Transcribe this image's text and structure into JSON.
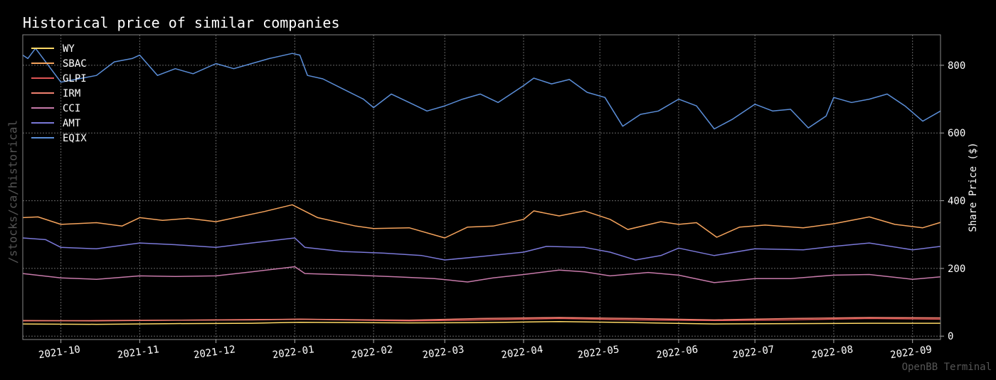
{
  "title": "Historical price of similar companies",
  "watermark_side": "/stocks/ca/historical",
  "watermark_brand": "OpenBB Terminal",
  "chart_data": {
    "type": "line",
    "title": "Historical price of similar companies",
    "xlabel": "",
    "ylabel": "Share Price ($)",
    "xlim": [
      "2021-09-16",
      "2022-09-12"
    ],
    "ylim": [
      -10,
      890
    ],
    "y_ticks": [
      0,
      200,
      400,
      600,
      800
    ],
    "x_ticks": [
      "2021-10",
      "2021-11",
      "2021-12",
      "2022-01",
      "2022-02",
      "2022-03",
      "2022-04",
      "2022-05",
      "2022-06",
      "2022-07",
      "2022-08",
      "2022-09"
    ],
    "grid": true,
    "legend_position": "top-left",
    "series": [
      {
        "name": "WY",
        "color": "#ffd966",
        "points": [
          [
            "2021-09-16",
            36
          ],
          [
            "2021-10-15",
            35
          ],
          [
            "2021-11-15",
            37
          ],
          [
            "2021-12-15",
            38
          ],
          [
            "2022-01-03",
            41
          ],
          [
            "2022-02-15",
            39
          ],
          [
            "2022-03-15",
            40
          ],
          [
            "2022-04-15",
            43
          ],
          [
            "2022-05-15",
            40
          ],
          [
            "2022-06-15",
            36
          ],
          [
            "2022-07-15",
            37
          ],
          [
            "2022-08-15",
            38
          ],
          [
            "2022-09-12",
            38
          ]
        ]
      },
      {
        "name": "SBAC",
        "color": "#f5a35c",
        "points": [
          [
            "2021-09-16",
            350
          ],
          [
            "2021-09-22",
            352
          ],
          [
            "2021-10-01",
            330
          ],
          [
            "2021-10-15",
            335
          ],
          [
            "2021-10-25",
            325
          ],
          [
            "2021-11-01",
            350
          ],
          [
            "2021-11-10",
            342
          ],
          [
            "2021-11-20",
            348
          ],
          [
            "2021-12-01",
            338
          ],
          [
            "2021-12-10",
            352
          ],
          [
            "2021-12-20",
            368
          ],
          [
            "2021-12-31",
            388
          ],
          [
            "2022-01-10",
            350
          ],
          [
            "2022-01-25",
            325
          ],
          [
            "2022-02-01",
            318
          ],
          [
            "2022-02-15",
            320
          ],
          [
            "2022-03-01",
            290
          ],
          [
            "2022-03-10",
            322
          ],
          [
            "2022-03-20",
            325
          ],
          [
            "2022-04-01",
            345
          ],
          [
            "2022-04-05",
            370
          ],
          [
            "2022-04-15",
            355
          ],
          [
            "2022-04-25",
            370
          ],
          [
            "2022-05-05",
            345
          ],
          [
            "2022-05-12",
            315
          ],
          [
            "2022-05-25",
            338
          ],
          [
            "2022-06-01",
            330
          ],
          [
            "2022-06-08",
            335
          ],
          [
            "2022-06-16",
            292
          ],
          [
            "2022-06-25",
            322
          ],
          [
            "2022-07-05",
            328
          ],
          [
            "2022-07-20",
            320
          ],
          [
            "2022-08-01",
            332
          ],
          [
            "2022-08-15",
            352
          ],
          [
            "2022-08-25",
            330
          ],
          [
            "2022-09-05",
            320
          ],
          [
            "2022-09-12",
            336
          ]
        ]
      },
      {
        "name": "GLPI",
        "color": "#e05555",
        "points": [
          [
            "2021-09-16",
            45
          ],
          [
            "2021-10-15",
            46
          ],
          [
            "2021-11-15",
            47
          ],
          [
            "2021-12-15",
            49
          ],
          [
            "2022-01-03",
            50
          ],
          [
            "2022-02-15",
            45
          ],
          [
            "2022-03-15",
            48
          ],
          [
            "2022-04-15",
            52
          ],
          [
            "2022-05-15",
            48
          ],
          [
            "2022-06-15",
            46
          ],
          [
            "2022-07-15",
            48
          ],
          [
            "2022-08-15",
            52
          ],
          [
            "2022-09-12",
            50
          ]
        ]
      },
      {
        "name": "IRM",
        "color": "#f08070",
        "points": [
          [
            "2021-09-16",
            46
          ],
          [
            "2021-10-15",
            45
          ],
          [
            "2021-11-15",
            47
          ],
          [
            "2021-12-15",
            48
          ],
          [
            "2022-01-03",
            50
          ],
          [
            "2022-02-15",
            47
          ],
          [
            "2022-03-15",
            52
          ],
          [
            "2022-04-15",
            55
          ],
          [
            "2022-05-15",
            52
          ],
          [
            "2022-06-15",
            48
          ],
          [
            "2022-07-15",
            52
          ],
          [
            "2022-08-15",
            55
          ],
          [
            "2022-09-12",
            54
          ]
        ]
      },
      {
        "name": "CCI",
        "color": "#c77aaa",
        "points": [
          [
            "2021-09-16",
            185
          ],
          [
            "2021-10-01",
            172
          ],
          [
            "2021-10-15",
            168
          ],
          [
            "2021-11-01",
            178
          ],
          [
            "2021-11-15",
            176
          ],
          [
            "2021-12-01",
            178
          ],
          [
            "2021-12-15",
            190
          ],
          [
            "2022-01-01",
            205
          ],
          [
            "2022-01-05",
            185
          ],
          [
            "2022-01-25",
            180
          ],
          [
            "2022-02-10",
            175
          ],
          [
            "2022-02-25",
            170
          ],
          [
            "2022-03-10",
            160
          ],
          [
            "2022-03-20",
            172
          ],
          [
            "2022-04-01",
            182
          ],
          [
            "2022-04-15",
            195
          ],
          [
            "2022-04-25",
            190
          ],
          [
            "2022-05-05",
            178
          ],
          [
            "2022-05-20",
            188
          ],
          [
            "2022-06-01",
            180
          ],
          [
            "2022-06-15",
            158
          ],
          [
            "2022-07-01",
            170
          ],
          [
            "2022-07-15",
            170
          ],
          [
            "2022-08-01",
            180
          ],
          [
            "2022-08-15",
            182
          ],
          [
            "2022-09-01",
            168
          ],
          [
            "2022-09-12",
            175
          ]
        ]
      },
      {
        "name": "AMT",
        "color": "#7a78d8",
        "points": [
          [
            "2021-09-16",
            290
          ],
          [
            "2021-09-25",
            285
          ],
          [
            "2021-10-01",
            262
          ],
          [
            "2021-10-15",
            258
          ],
          [
            "2021-11-01",
            275
          ],
          [
            "2021-11-15",
            270
          ],
          [
            "2021-12-01",
            262
          ],
          [
            "2021-12-15",
            275
          ],
          [
            "2022-01-01",
            290
          ],
          [
            "2022-01-05",
            262
          ],
          [
            "2022-01-20",
            250
          ],
          [
            "2022-02-05",
            245
          ],
          [
            "2022-02-20",
            238
          ],
          [
            "2022-03-01",
            225
          ],
          [
            "2022-03-15",
            235
          ],
          [
            "2022-04-01",
            248
          ],
          [
            "2022-04-10",
            265
          ],
          [
            "2022-04-25",
            262
          ],
          [
            "2022-05-05",
            248
          ],
          [
            "2022-05-15",
            225
          ],
          [
            "2022-05-25",
            238
          ],
          [
            "2022-06-01",
            260
          ],
          [
            "2022-06-15",
            238
          ],
          [
            "2022-07-01",
            258
          ],
          [
            "2022-07-20",
            255
          ],
          [
            "2022-08-01",
            265
          ],
          [
            "2022-08-15",
            275
          ],
          [
            "2022-09-01",
            255
          ],
          [
            "2022-09-12",
            265
          ]
        ]
      },
      {
        "name": "EQIX",
        "color": "#5b8ed8",
        "points": [
          [
            "2021-09-16",
            830
          ],
          [
            "2021-09-18",
            820
          ],
          [
            "2021-09-21",
            850
          ],
          [
            "2021-09-25",
            810
          ],
          [
            "2021-10-01",
            750
          ],
          [
            "2021-10-08",
            760
          ],
          [
            "2021-10-15",
            770
          ],
          [
            "2021-10-22",
            810
          ],
          [
            "2021-10-29",
            820
          ],
          [
            "2021-11-01",
            830
          ],
          [
            "2021-11-08",
            770
          ],
          [
            "2021-11-15",
            790
          ],
          [
            "2021-11-22",
            775
          ],
          [
            "2021-12-01",
            805
          ],
          [
            "2021-12-08",
            790
          ],
          [
            "2021-12-15",
            805
          ],
          [
            "2021-12-22",
            820
          ],
          [
            "2021-12-31",
            835
          ],
          [
            "2022-01-03",
            830
          ],
          [
            "2022-01-06",
            770
          ],
          [
            "2022-01-12",
            760
          ],
          [
            "2022-01-20",
            730
          ],
          [
            "2022-01-28",
            700
          ],
          [
            "2022-02-01",
            675
          ],
          [
            "2022-02-08",
            715
          ],
          [
            "2022-02-15",
            690
          ],
          [
            "2022-02-22",
            665
          ],
          [
            "2022-03-01",
            680
          ],
          [
            "2022-03-08",
            700
          ],
          [
            "2022-03-15",
            715
          ],
          [
            "2022-03-22",
            690
          ],
          [
            "2022-04-01",
            740
          ],
          [
            "2022-04-05",
            762
          ],
          [
            "2022-04-12",
            745
          ],
          [
            "2022-04-19",
            758
          ],
          [
            "2022-04-26",
            720
          ],
          [
            "2022-05-03",
            705
          ],
          [
            "2022-05-10",
            620
          ],
          [
            "2022-05-17",
            655
          ],
          [
            "2022-05-24",
            665
          ],
          [
            "2022-06-01",
            700
          ],
          [
            "2022-06-08",
            680
          ],
          [
            "2022-06-15",
            612
          ],
          [
            "2022-06-22",
            640
          ],
          [
            "2022-07-01",
            685
          ],
          [
            "2022-07-08",
            665
          ],
          [
            "2022-07-15",
            670
          ],
          [
            "2022-07-22",
            615
          ],
          [
            "2022-07-29",
            650
          ],
          [
            "2022-08-01",
            705
          ],
          [
            "2022-08-08",
            690
          ],
          [
            "2022-08-15",
            700
          ],
          [
            "2022-08-22",
            715
          ],
          [
            "2022-08-29",
            680
          ],
          [
            "2022-09-05",
            635
          ],
          [
            "2022-09-12",
            665
          ]
        ]
      }
    ]
  }
}
